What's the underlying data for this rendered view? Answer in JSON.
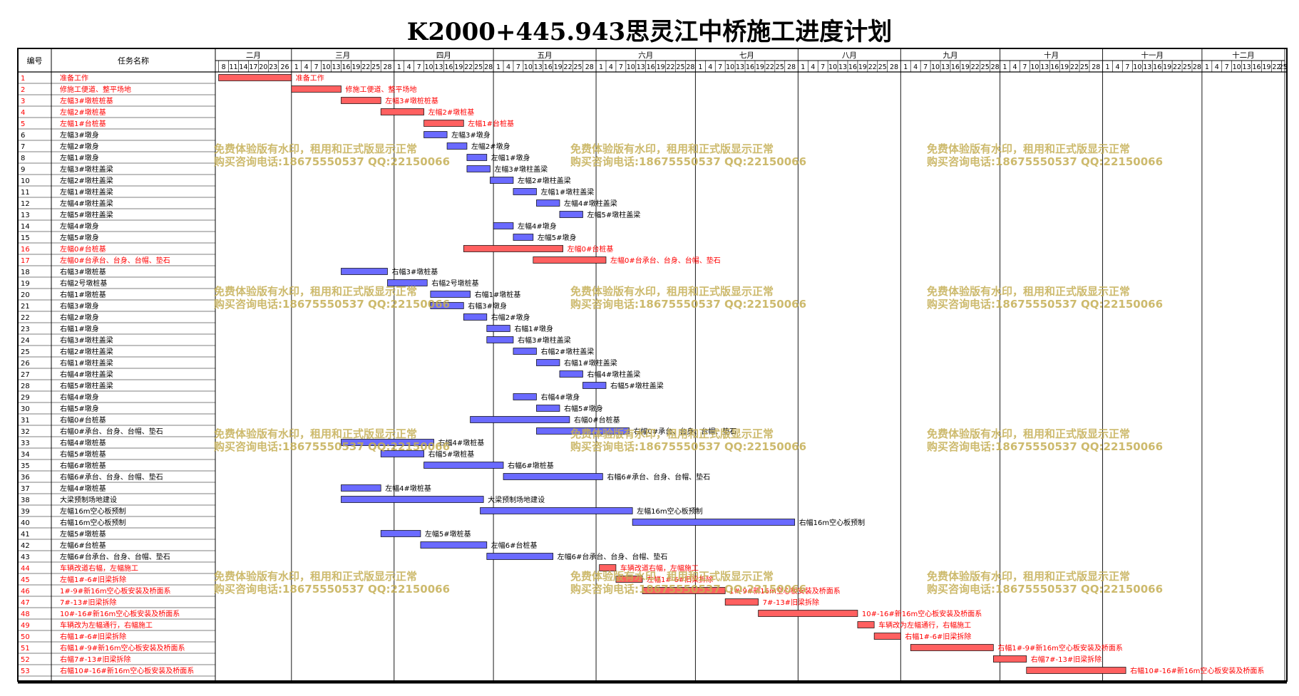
{
  "title": "K2000+445.943思灵江中桥施工进度计划",
  "header": {
    "no_label": "编号",
    "name_label": "任务名称"
  },
  "months": [
    {
      "name": "二月",
      "days": [
        8,
        11,
        14,
        17,
        20,
        23,
        26
      ]
    },
    {
      "name": "三月",
      "days": [
        1,
        4,
        7,
        10,
        13,
        16,
        19,
        22,
        25,
        28
      ]
    },
    {
      "name": "四月",
      "days": [
        1,
        4,
        7,
        10,
        13,
        16,
        19,
        22,
        25,
        28
      ]
    },
    {
      "name": "五月",
      "days": [
        1,
        4,
        7,
        10,
        13,
        16,
        19,
        22,
        25,
        28
      ]
    },
    {
      "name": "六月",
      "days": [
        1,
        4,
        7,
        10,
        13,
        16,
        19,
        22,
        25,
        28
      ]
    },
    {
      "name": "七月",
      "days": [
        1,
        4,
        7,
        10,
        13,
        16,
        19,
        22,
        25,
        28
      ]
    },
    {
      "name": "八月",
      "days": [
        1,
        4,
        7,
        10,
        13,
        16,
        19,
        22,
        25,
        28
      ]
    },
    {
      "name": "九月",
      "days": [
        1,
        4,
        7,
        10,
        13,
        16,
        19,
        22,
        25,
        28
      ]
    },
    {
      "name": "十月",
      "days": [
        1,
        4,
        7,
        10,
        13,
        16,
        19,
        22,
        25,
        28
      ]
    },
    {
      "name": "十一月",
      "days": [
        1,
        4,
        7,
        10,
        13,
        16,
        19,
        22,
        25,
        28
      ]
    },
    {
      "name": "十二月",
      "days": [
        1,
        4,
        7,
        10,
        13,
        16,
        19,
        22,
        25
      ]
    }
  ],
  "colors": {
    "critical": "#ff6060",
    "normal": "#6a6aff",
    "critical_text": "#ff0000",
    "watermark": "#c4ae54"
  },
  "watermark": {
    "line1": "免费体验版有水印，租用和正式版显示正常",
    "line2": "购买咨询电话:18675550537 QQ:22150066"
  },
  "chart_data": {
    "type": "gantt",
    "title": "K2000+445.943思灵江中桥施工进度计划",
    "x_axis": "date (month/day)",
    "tasks": [
      {
        "no": "1",
        "name": "准备工作",
        "start": "02-08",
        "end": "03-01",
        "critical": true
      },
      {
        "no": "2",
        "name": "修施工便道、整平场地",
        "start": "03-01",
        "end": "03-16",
        "critical": true
      },
      {
        "no": "3",
        "name": "左幅3#墩桩桩基",
        "start": "03-16",
        "end": "03-28",
        "critical": true
      },
      {
        "no": "4",
        "name": "左幅2#墩桩基",
        "start": "03-28",
        "end": "04-10",
        "critical": true
      },
      {
        "no": "5",
        "name": "左幅1#台桩基",
        "start": "04-10",
        "end": "04-22",
        "critical": true
      },
      {
        "no": "6",
        "name": "左幅3#墩身",
        "start": "04-10",
        "end": "04-17",
        "critical": false
      },
      {
        "no": "7",
        "name": "左幅2#墩身",
        "start": "04-17",
        "end": "04-23",
        "critical": false
      },
      {
        "no": "8",
        "name": "左幅1#墩身",
        "start": "04-23",
        "end": "04-29",
        "critical": false
      },
      {
        "no": "9",
        "name": "左幅3#墩柱盖梁",
        "start": "04-23",
        "end": "04-30",
        "critical": false
      },
      {
        "no": "10",
        "name": "左幅2#墩柱盖梁",
        "start": "04-30",
        "end": "05-07",
        "critical": false
      },
      {
        "no": "11",
        "name": "左幅1#墩柱盖梁",
        "start": "05-07",
        "end": "05-14",
        "critical": false
      },
      {
        "no": "12",
        "name": "左幅4#墩柱盖梁",
        "start": "05-14",
        "end": "05-21",
        "critical": false
      },
      {
        "no": "13",
        "name": "左幅5#墩柱盖梁",
        "start": "05-21",
        "end": "05-28",
        "critical": false
      },
      {
        "no": "14",
        "name": "左幅4#墩身",
        "start": "05-01",
        "end": "05-07",
        "critical": false
      },
      {
        "no": "15",
        "name": "左幅5#墩身",
        "start": "05-07",
        "end": "05-13",
        "critical": false
      },
      {
        "no": "16",
        "name": "左幅0#台桩基",
        "start": "04-22",
        "end": "05-22",
        "critical": true
      },
      {
        "no": "17",
        "name": "左幅0#台承台、台身、台帽、垫石",
        "start": "05-13",
        "end": "06-04",
        "critical": true
      },
      {
        "no": "18",
        "name": "右幅3#墩桩基",
        "start": "03-16",
        "end": "03-30",
        "critical": false
      },
      {
        "no": "19",
        "name": "右幅2号墩桩基",
        "start": "03-30",
        "end": "04-11",
        "critical": false
      },
      {
        "no": "20",
        "name": "右幅1#墩桩基",
        "start": "04-12",
        "end": "04-24",
        "critical": false
      },
      {
        "no": "21",
        "name": "右幅3#墩身",
        "start": "04-12",
        "end": "04-22",
        "critical": false
      },
      {
        "no": "22",
        "name": "右幅2#墩身",
        "start": "04-22",
        "end": "04-29",
        "critical": false
      },
      {
        "no": "23",
        "name": "右幅1#墩身",
        "start": "04-29",
        "end": "05-06",
        "critical": false
      },
      {
        "no": "24",
        "name": "右幅3#墩柱盖梁",
        "start": "04-29",
        "end": "05-07",
        "critical": false
      },
      {
        "no": "25",
        "name": "右幅2#墩柱盖梁",
        "start": "05-07",
        "end": "05-14",
        "critical": false
      },
      {
        "no": "26",
        "name": "右幅1#墩柱盖梁",
        "start": "05-14",
        "end": "05-21",
        "critical": false
      },
      {
        "no": "27",
        "name": "右幅4#墩柱盖梁",
        "start": "05-21",
        "end": "05-28",
        "critical": false
      },
      {
        "no": "28",
        "name": "右幅5#墩柱盖梁",
        "start": "05-28",
        "end": "06-04",
        "critical": false
      },
      {
        "no": "29",
        "name": "右幅4#墩身",
        "start": "05-07",
        "end": "05-14",
        "critical": false
      },
      {
        "no": "30",
        "name": "右幅5#墩身",
        "start": "05-14",
        "end": "05-21",
        "critical": false
      },
      {
        "no": "31",
        "name": "右幅0#台桩基",
        "start": "04-24",
        "end": "05-24",
        "critical": false
      },
      {
        "no": "32",
        "name": "右幅0#承台、台身、台帽、垫石",
        "start": "05-14",
        "end": "06-11",
        "critical": false
      },
      {
        "no": "33",
        "name": "右幅4#墩桩基",
        "start": "03-16",
        "end": "04-13",
        "critical": false
      },
      {
        "no": "34",
        "name": "右幅5#墩桩基",
        "start": "03-28",
        "end": "04-10",
        "critical": false
      },
      {
        "no": "35",
        "name": "右幅6#墩桩基",
        "start": "04-10",
        "end": "05-04",
        "critical": false
      },
      {
        "no": "36",
        "name": "右幅6#承台、台身、台帽、垫石",
        "start": "05-04",
        "end": "06-03",
        "critical": false
      },
      {
        "no": "37",
        "name": "左幅4#墩桩基",
        "start": "03-16",
        "end": "03-28",
        "critical": false
      },
      {
        "no": "38",
        "name": "大梁预制场地建设",
        "start": "03-16",
        "end": "04-28",
        "critical": false
      },
      {
        "no": "39",
        "name": "左幅16m空心板预制",
        "start": "04-27",
        "end": "06-12",
        "critical": false
      },
      {
        "no": "40",
        "name": "右幅16m空心板预制",
        "start": "06-12",
        "end": "07-31",
        "critical": false
      },
      {
        "no": "41",
        "name": "左幅5#墩桩基",
        "start": "03-28",
        "end": "04-09",
        "critical": false
      },
      {
        "no": "42",
        "name": "左幅6#台桩基",
        "start": "04-09",
        "end": "04-29",
        "critical": false
      },
      {
        "no": "43",
        "name": "左幅6#台承台、台身、台帽、垫石",
        "start": "04-29",
        "end": "05-19",
        "critical": false
      },
      {
        "no": "44",
        "name": "车辆改道右幅，左幅施工",
        "start": "06-02",
        "end": "06-07",
        "critical": true
      },
      {
        "no": "45",
        "name": "左幅1#-6#旧梁拆除",
        "start": "06-07",
        "end": "06-15",
        "critical": true
      },
      {
        "no": "46",
        "name": "1#-9#新16m空心板安装及桥面系",
        "start": "06-15",
        "end": "07-10",
        "critical": true
      },
      {
        "no": "47",
        "name": "7#-13#旧梁拆除",
        "start": "07-10",
        "end": "07-20",
        "critical": true
      },
      {
        "no": "48",
        "name": "10#-16#新16m空心板安装及桥面系",
        "start": "07-20",
        "end": "08-19",
        "critical": true
      },
      {
        "no": "49",
        "name": "车辆改为左幅通行，右幅施工",
        "start": "08-19",
        "end": "08-24",
        "critical": true
      },
      {
        "no": "50",
        "name": "右幅1#-6#旧梁拆除",
        "start": "08-24",
        "end": "09-01",
        "critical": true
      },
      {
        "no": "51",
        "name": "右幅1#-9#新16m空心板安装及桥面系",
        "start": "09-04",
        "end": "09-29",
        "critical": true
      },
      {
        "no": "52",
        "name": "右幅7#-13#旧梁拆除",
        "start": "09-29",
        "end": "10-09",
        "critical": true
      },
      {
        "no": "53",
        "name": "右幅10#-16#新16m空心板安装及桥面系",
        "start": "10-09",
        "end": "11-08",
        "critical": true
      }
    ]
  }
}
